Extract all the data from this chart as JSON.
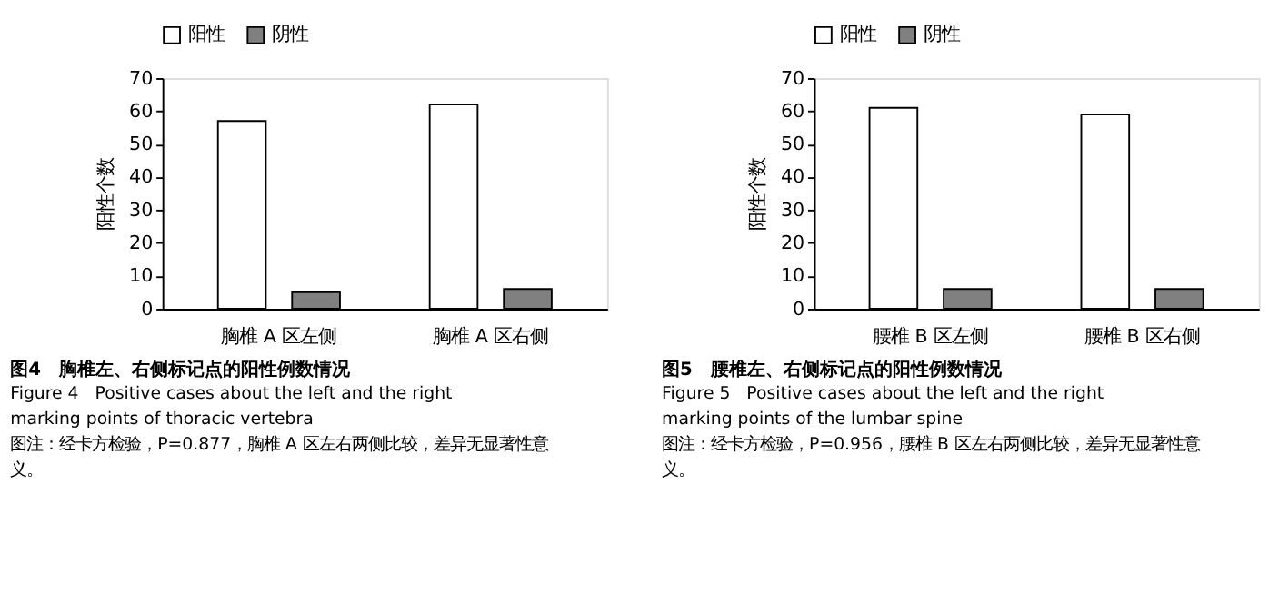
{
  "chart_data": [
    {
      "type": "bar",
      "title": "图4　胸椎左、右侧标记点的阳性例数情况",
      "annotations": [
        "Figure 4　Positive cases about the left and the right marking points of thoracic vertebra",
        "图注：经卡方检验，P=0.877，胸椎 A 区左右两侧比较，差异无显著性意义。"
      ],
      "categories": [
        "胸椎 A 区左侧",
        "胸椎 A 区右侧"
      ],
      "ylabel": "阳性个数",
      "ylim": [
        0,
        70
      ],
      "yticks": [
        0,
        10,
        20,
        30,
        40,
        50,
        60,
        70
      ],
      "legend": "top",
      "grid": false,
      "series": [
        {
          "name": "阳性",
          "color": "#ffffff",
          "values": [
            57,
            62
          ]
        },
        {
          "name": "阴性",
          "color": "#808080",
          "values": [
            5,
            6
          ]
        }
      ]
    },
    {
      "type": "bar",
      "title": "图5　腰椎左、右侧标记点的阳性例数情况",
      "annotations": [
        "Figure 5　Positive cases about the left and the right marking points of the lumbar spine",
        "图注：经卡方检验，P=0.956，腰椎 B 区左右两侧比较，差异无显著性意义。"
      ],
      "categories": [
        "腰椎 B 区左侧",
        "腰椎 B 区右侧"
      ],
      "ylabel": "阳性个数",
      "ylim": [
        0,
        70
      ],
      "yticks": [
        0,
        10,
        20,
        30,
        40,
        50,
        60,
        70
      ],
      "legend": "top",
      "grid": false,
      "series": [
        {
          "name": "阳性",
          "color": "#ffffff",
          "values": [
            61,
            59
          ]
        },
        {
          "name": "阴性",
          "color": "#808080",
          "values": [
            6,
            6
          ]
        }
      ]
    }
  ]
}
